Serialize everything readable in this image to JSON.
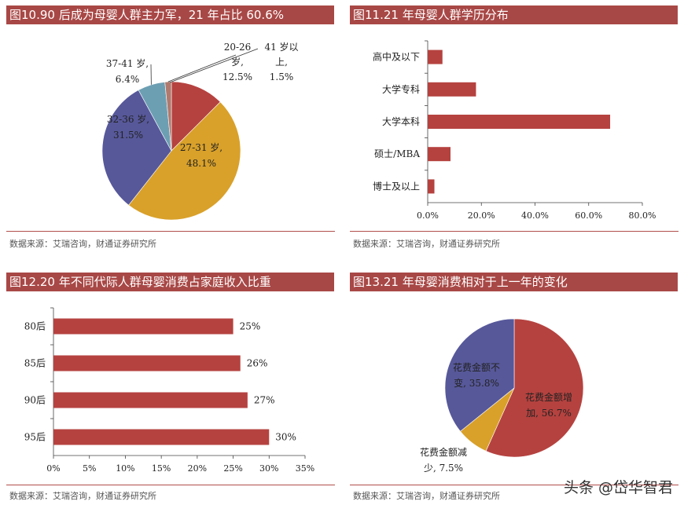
{
  "chart_data": [
    {
      "type": "pie",
      "title": "图10.90 后成为母婴人群主力军，21 年占比 60.6%",
      "source": "数据来源：艾瑞咨询，财通证券研究所",
      "labels": [
        [
          "20-26",
          "岁,",
          "12.5%"
        ],
        [
          "27-31 岁,",
          "48.1%"
        ],
        [
          "32-36 岁,",
          "31.5%"
        ],
        [
          "37-41 岁,",
          "6.4%"
        ],
        [
          "41 岁以",
          "上,",
          "1.5%"
        ]
      ],
      "names": [
        "20-26岁",
        "27-31岁",
        "32-36岁",
        "37-41岁",
        "41岁以上"
      ],
      "values": [
        12.5,
        48.1,
        31.5,
        6.4,
        1.5
      ],
      "colors": [
        "#b5423f",
        "#d9a12a",
        "#57589a",
        "#6d9fb3",
        "#b07a6e"
      ]
    },
    {
      "type": "bar",
      "title": "图11.21 年母婴人群学历分布",
      "source": "数据来源：艾瑞咨询，财通证券研究所",
      "categories": [
        "高中及以下",
        "大学专科",
        "大学本科",
        "硕士/MBA",
        "博士及以上"
      ],
      "values": [
        5.5,
        18.0,
        68.0,
        8.5,
        2.5
      ],
      "xlim": [
        0,
        80
      ],
      "ticks": [
        "0.0%",
        "20.0%",
        "40.0%",
        "60.0%",
        "80.0%"
      ],
      "color": "#b5423f"
    },
    {
      "type": "bar",
      "title": "图12.20 年不同代际人群母婴消费占家庭收入比重",
      "source": "数据来源：艾瑞咨询，财通证券研究所",
      "categories": [
        "80后",
        "85后",
        "90后",
        "95后"
      ],
      "values": [
        25,
        26,
        27,
        30
      ],
      "value_labels": [
        "25%",
        "26%",
        "27%",
        "30%"
      ],
      "xlim": [
        0,
        35
      ],
      "ticks": [
        "0%",
        "5%",
        "10%",
        "15%",
        "20%",
        "25%",
        "30%",
        "35%"
      ],
      "color": "#b5423f"
    },
    {
      "type": "pie",
      "title": "图13.21 年母婴消费相对于上一年的变化",
      "source": "数据来源：艾瑞咨询，财通证券研究所",
      "labels": [
        [
          "花费金额增",
          "加, 56.7%"
        ],
        [
          "花费金额减",
          "少, 7.5%"
        ],
        [
          "花费金额不",
          "变, 35.8%"
        ]
      ],
      "names": [
        "花费金额增加",
        "花费金额减少",
        "花费金额不变"
      ],
      "values": [
        56.7,
        7.5,
        35.8
      ],
      "colors": [
        "#b5423f",
        "#d9a12a",
        "#57589a"
      ]
    }
  ],
  "watermark": "头条 @岱华智君"
}
